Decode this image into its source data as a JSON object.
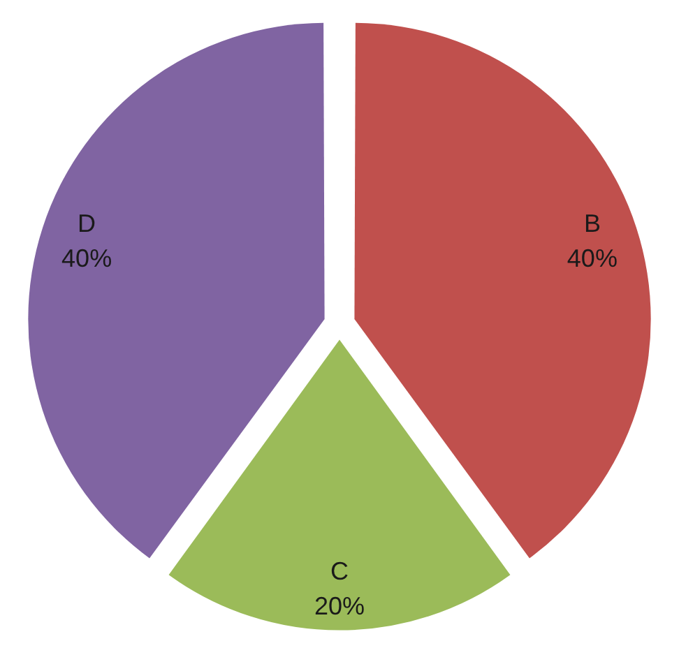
{
  "chart_data": {
    "type": "pie",
    "categories": [
      "B",
      "C",
      "D"
    ],
    "values": [
      40,
      20,
      40
    ],
    "colors": [
      "#c0504d",
      "#9bbb59",
      "#8064a2"
    ],
    "value_labels": [
      "40%",
      "20%",
      "40%"
    ]
  }
}
